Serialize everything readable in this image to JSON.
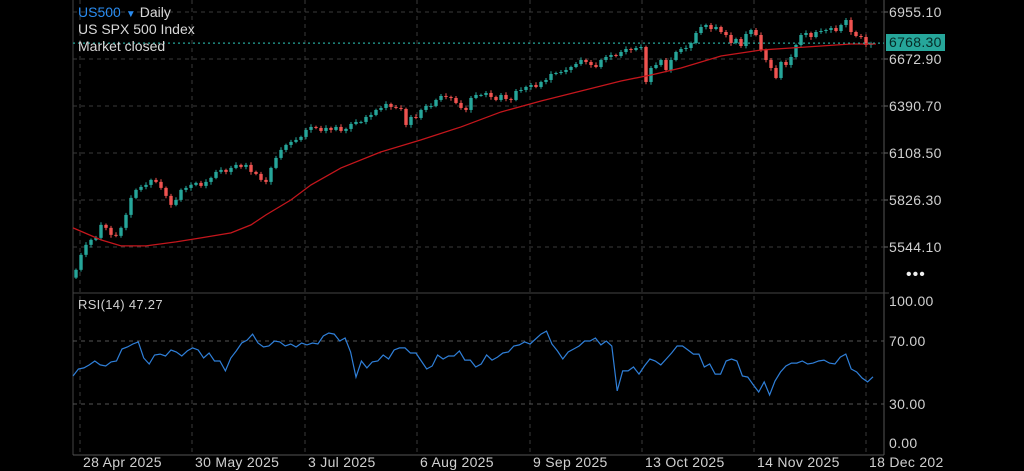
{
  "header": {
    "symbol": "US500",
    "interval": "Daily",
    "name": "US SPX 500 Index",
    "status": "Market closed"
  },
  "more_label": "•••",
  "colors": {
    "up": "#26a69a",
    "down": "#ef5350",
    "ma": "#c4161c",
    "rsi": "#2f7fd8",
    "current": "#26a69a",
    "grid": "#3a3a3a"
  },
  "chart_data": [
    {
      "type": "candlestick",
      "title": "US500 Daily",
      "y_ticks": [
        "6955.10",
        "6672.90",
        "6390.70",
        "6108.50",
        "5826.30",
        "5544.10"
      ],
      "ylim": [
        5330,
        7020
      ],
      "current_price": "6768.30",
      "x_ticks": [
        {
          "label": "28 Apr 2025",
          "index": 2
        },
        {
          "label": "30 May 2025",
          "index": 24.4
        },
        {
          "label": "3 Jul 2025",
          "index": 47
        },
        {
          "label": "6 Aug 2025",
          "index": 69.4
        },
        {
          "label": "9 Sep 2025",
          "index": 92
        },
        {
          "label": "13 Oct 2025",
          "index": 114.4
        },
        {
          "label": "14 Nov 2025",
          "index": 136.8
        },
        {
          "label": "18 Dec 202",
          "index": 159.2
        }
      ],
      "first_open": 5360,
      "closes": [
        5407,
        5497,
        5557,
        5587,
        5599,
        5677,
        5659,
        5617,
        5611,
        5659,
        5737,
        5839,
        5887,
        5905,
        5917,
        5947,
        5935,
        5899,
        5851,
        5797,
        5827,
        5887,
        5899,
        5917,
        5929,
        5911,
        5935,
        5959,
        5995,
        6007,
        5995,
        6019,
        6037,
        6025,
        6037,
        5995,
        5983,
        5947,
        5935,
        6019,
        6079,
        6127,
        6157,
        6175,
        6187,
        6205,
        6247,
        6265,
        6259,
        6241,
        6259,
        6247,
        6265,
        6241,
        6253,
        6283,
        6295,
        6295,
        6325,
        6337,
        6367,
        6379,
        6403,
        6385,
        6379,
        6373,
        6277,
        6325,
        6319,
        6367,
        6391,
        6391,
        6427,
        6451,
        6445,
        6439,
        6409,
        6379,
        6367,
        6439,
        6457,
        6457,
        6469,
        6445,
        6427,
        6457,
        6433,
        6427,
        6481,
        6487,
        6505,
        6517,
        6505,
        6535,
        6547,
        6583,
        6589,
        6595,
        6607,
        6625,
        6643,
        6667,
        6655,
        6637,
        6625,
        6667,
        6685,
        6697,
        6691,
        6715,
        6733,
        6727,
        6739,
        6745,
        6535,
        6619,
        6637,
        6667,
        6607,
        6667,
        6715,
        6733,
        6739,
        6769,
        6829,
        6865,
        6877,
        6853,
        6865,
        6835,
        6817,
        6769,
        6793,
        6751,
        6823,
        6847,
        6817,
        6727,
        6667,
        6619,
        6559,
        6655,
        6637,
        6685,
        6757,
        6817,
        6829,
        6805,
        6835,
        6841,
        6847,
        6859,
        6841,
        6877,
        6907,
        6835,
        6811,
        6805,
        6757,
        6768.3
      ],
      "moving_average": [
        [
          0,
          5659
        ],
        [
          5,
          5587
        ],
        [
          9,
          5551
        ],
        [
          14,
          5551
        ],
        [
          20,
          5575
        ],
        [
          25,
          5599
        ],
        [
          31,
          5629
        ],
        [
          35,
          5677
        ],
        [
          38,
          5737
        ],
        [
          43,
          5827
        ],
        [
          47,
          5917
        ],
        [
          53,
          6019
        ],
        [
          61,
          6115
        ],
        [
          69,
          6187
        ],
        [
          77,
          6265
        ],
        [
          85,
          6355
        ],
        [
          93,
          6421
        ],
        [
          101,
          6481
        ],
        [
          109,
          6541
        ],
        [
          115,
          6577
        ],
        [
          121,
          6619
        ],
        [
          125,
          6655
        ],
        [
          129,
          6691
        ],
        [
          133,
          6709
        ],
        [
          137,
          6727
        ],
        [
          143,
          6739
        ],
        [
          149,
          6751
        ],
        [
          155,
          6763
        ],
        [
          160,
          6763
        ]
      ]
    },
    {
      "type": "line",
      "title": "RSI(14)",
      "value_label": "47.27",
      "y_ticks": [
        "100.00",
        "70.00",
        "30.00",
        "0.00"
      ],
      "ylim": [
        0,
        100
      ],
      "values": [
        47.8,
        52.2,
        52.9,
        54.8,
        57.3,
        54.8,
        54.1,
        56.7,
        57.3,
        64.9,
        66.2,
        68.1,
        69.4,
        59.2,
        55.4,
        61.1,
        61.7,
        60.5,
        64.3,
        63.0,
        60.5,
        63.7,
        65.6,
        64.3,
        59.2,
        62.4,
        57.3,
        57.3,
        51.0,
        59.2,
        63.7,
        68.7,
        70.6,
        74.4,
        68.7,
        66.2,
        66.8,
        70.0,
        69.4,
        66.8,
        68.1,
        66.2,
        68.7,
        67.5,
        68.7,
        68.1,
        73.2,
        75.1,
        74.4,
        70.0,
        71.9,
        63.0,
        47.1,
        57.3,
        52.9,
        56.7,
        57.3,
        61.1,
        58.6,
        64.3,
        65.6,
        65.6,
        62.4,
        62.4,
        57.3,
        52.2,
        54.1,
        61.1,
        58.6,
        60.5,
        60.5,
        63.7,
        57.9,
        57.9,
        53.5,
        55.4,
        61.1,
        57.9,
        59.8,
        62.4,
        63.0,
        66.8,
        67.5,
        69.4,
        68.1,
        71.3,
        74.4,
        76.3,
        68.1,
        63.7,
        58.6,
        63.0,
        64.9,
        66.8,
        70.0,
        70.0,
        71.9,
        67.5,
        70.0,
        66.8,
        38.3,
        51.0,
        51.0,
        53.5,
        49.0,
        54.1,
        58.6,
        57.3,
        54.8,
        58.6,
        62.4,
        66.8,
        66.8,
        64.3,
        61.7,
        61.7,
        53.5,
        55.4,
        49.0,
        49.0,
        57.3,
        58.6,
        57.3,
        47.8,
        47.1,
        42.1,
        37.6,
        44.0,
        35.7,
        44.6,
        50.3,
        54.1,
        56.0,
        56.0,
        57.3,
        55.4,
        56.0,
        57.3,
        57.9,
        56.0,
        55.4,
        59.8,
        61.7,
        52.2,
        50.3,
        46.5,
        44.0,
        47.27
      ]
    }
  ]
}
